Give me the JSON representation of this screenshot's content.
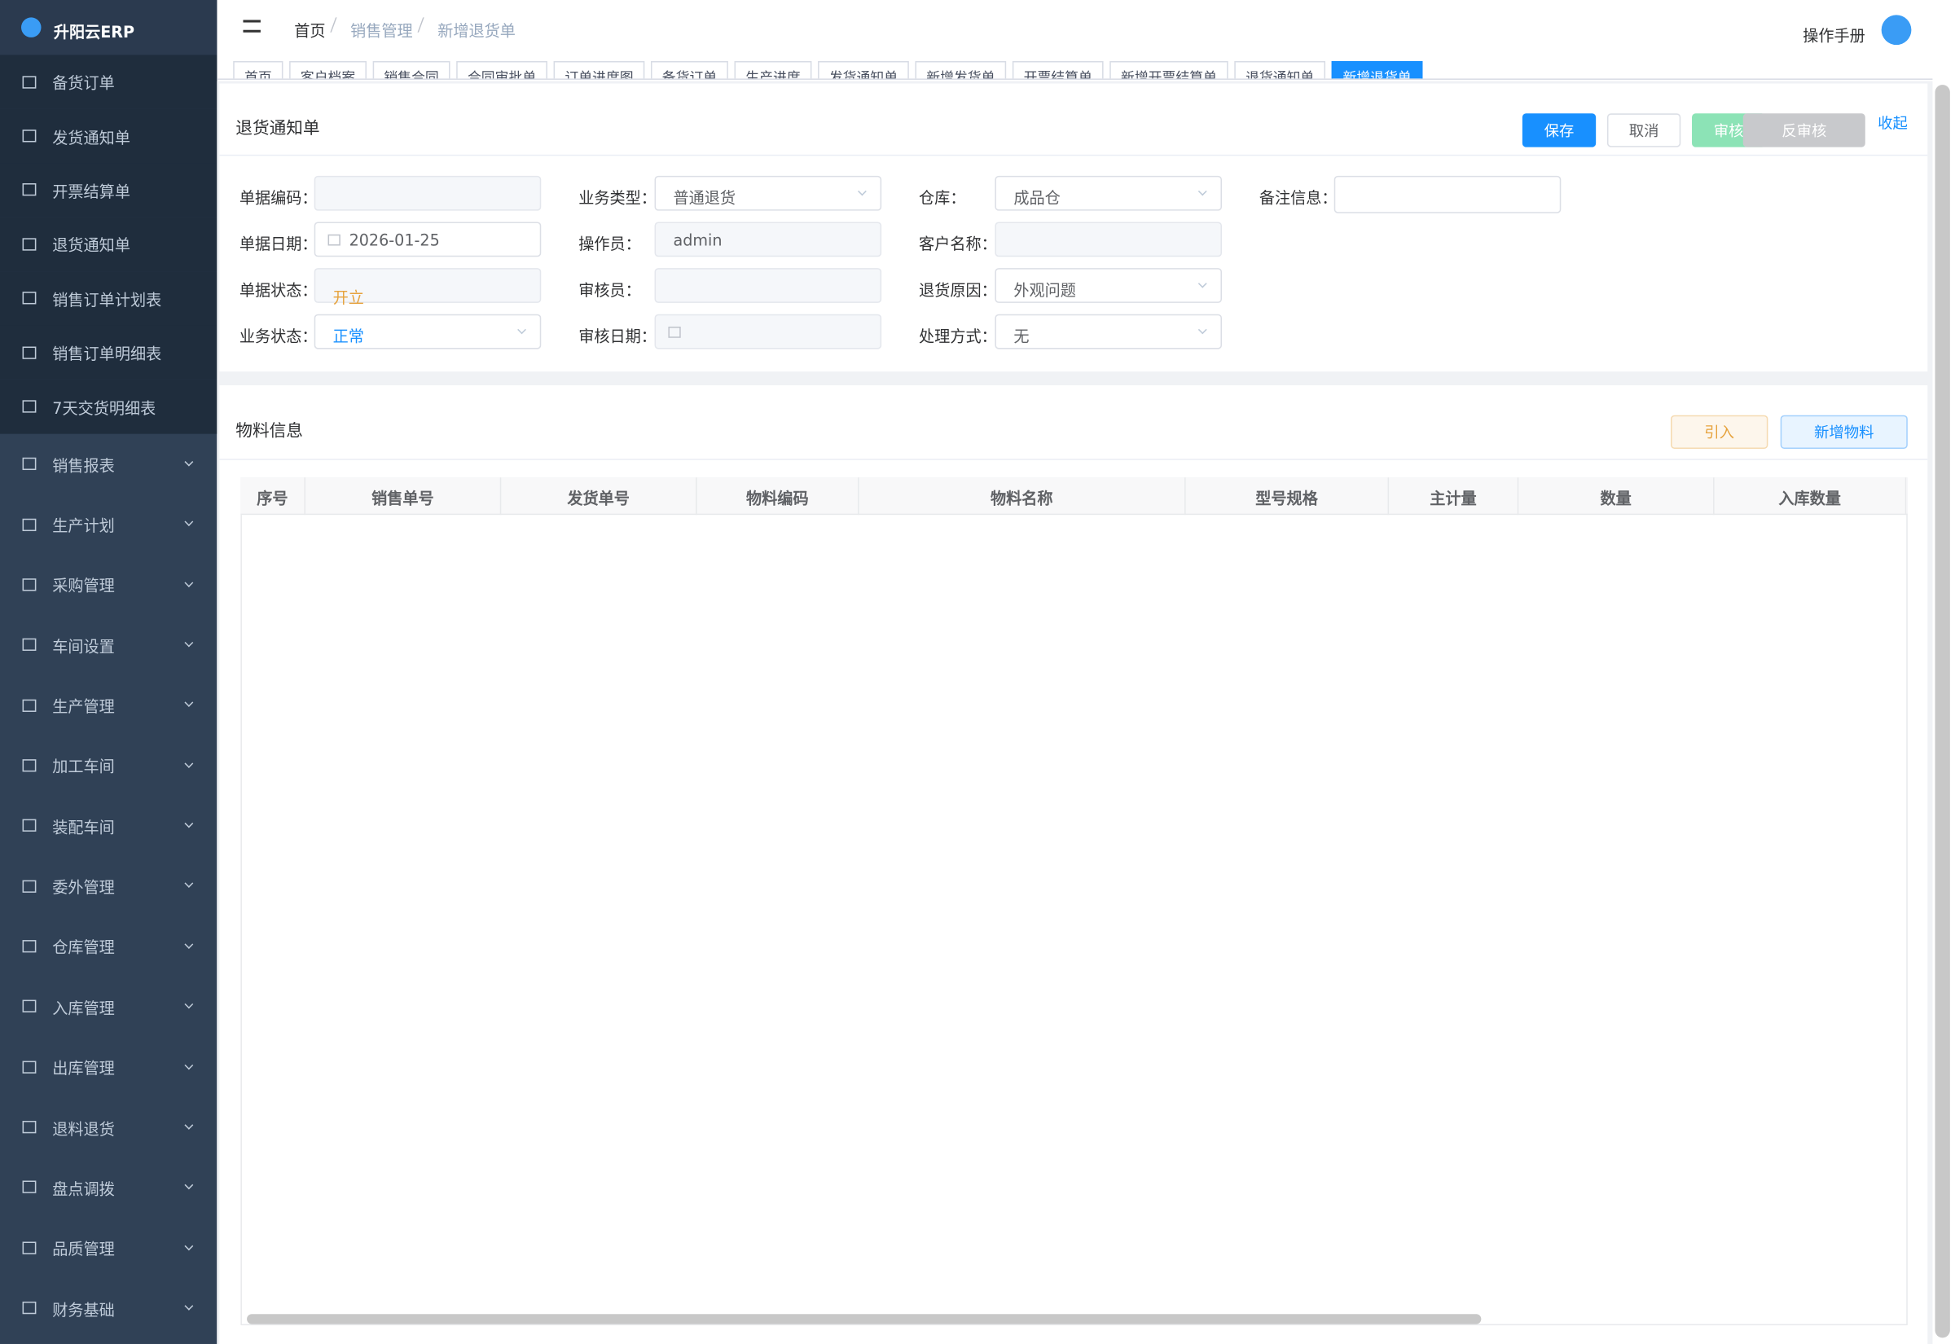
{
  "sidebar": {
    "brand": "升阳云ERP",
    "items": [
      "备货订单",
      "发货通知单",
      "开票结算单",
      "退货通知单",
      "销售订单计划表",
      "销售订单明细表",
      "7天交货明细表"
    ],
    "groups": [
      "销售报表",
      "生产计划",
      "采购管理",
      "车间设置",
      "生产管理",
      "加工车间",
      "装配车间",
      "委外管理",
      "仓库管理",
      "入库管理",
      "出库管理",
      "退料退货",
      "盘点调拨",
      "品质管理",
      "财务基础"
    ]
  },
  "header": {
    "breadcrumb": [
      "首页",
      "销售管理",
      "新增退货单"
    ],
    "manual": "操作手册"
  },
  "tabs": [
    "首页",
    "客户档案",
    "销售合同",
    "合同审批单",
    "订单进度图",
    "备货订单",
    "生产进度",
    "发货通知单",
    "新增发货单",
    "开票结算单",
    "新增开票结算单",
    "退货通知单",
    "新增退货单"
  ],
  "form": {
    "title": "退货通知单",
    "buttons": [
      "保存",
      "取消",
      "审核",
      "反审核"
    ],
    "collapse": "收起",
    "fields": [
      {
        "label": "单据编码：",
        "col": 0,
        "row": 0,
        "kind": "disabled"
      },
      {
        "label": "单据日期：",
        "col": 0,
        "row": 1,
        "kind": "date",
        "value": "2026-01-25"
      },
      {
        "label": "单据状态：",
        "col": 0,
        "row": 2,
        "kind": "status",
        "value": "开立"
      },
      {
        "label": "业务状态：",
        "col": 0,
        "row": 3,
        "kind": "select-blue",
        "value": "正常"
      },
      {
        "label": "业务类型：",
        "col": 1,
        "row": 0,
        "kind": "select",
        "value": "普通退货"
      },
      {
        "label": "操作员：",
        "col": 1,
        "row": 1,
        "kind": "disabled",
        "value": "admin"
      },
      {
        "label": "审核员：",
        "col": 1,
        "row": 2,
        "kind": "disabled"
      },
      {
        "label": "审核日期：",
        "col": 1,
        "row": 3,
        "kind": "date-disabled"
      },
      {
        "label": "仓库：",
        "col": 2,
        "row": 0,
        "kind": "select",
        "value": "成品仓"
      },
      {
        "label": "客户名称：",
        "col": 2,
        "row": 1,
        "kind": "disabled"
      },
      {
        "label": "退货原因：",
        "col": 2,
        "row": 2,
        "kind": "select",
        "value": "外观问题"
      },
      {
        "label": "处理方式：",
        "col": 2,
        "row": 3,
        "kind": "select",
        "value": "无"
      },
      {
        "label": "备注信息：",
        "col": 3,
        "row": 0,
        "kind": "textarea"
      }
    ]
  },
  "materials": {
    "title": "物料信息",
    "buttons": [
      "引入",
      "新增物料"
    ],
    "columns": [
      "序号",
      "销售单号",
      "发货单号",
      "物料编码",
      "物料名称",
      "型号规格",
      "主计量",
      "数量",
      "入库数量"
    ]
  }
}
